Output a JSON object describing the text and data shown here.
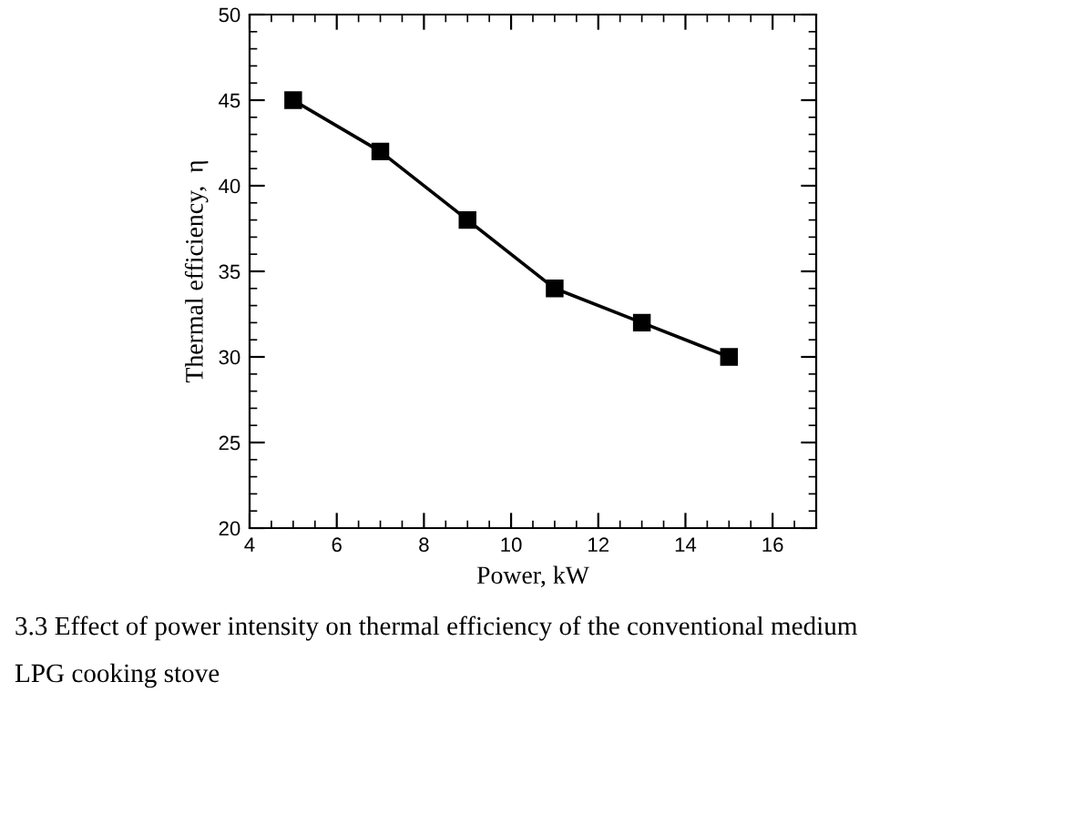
{
  "chart_data": {
    "type": "line",
    "xlabel": "Power, kW",
    "ylabel": "Thermal efficiency,  η",
    "x": [
      5,
      7,
      9,
      11,
      13,
      15
    ],
    "series": [
      {
        "color": "#000000",
        "values": [
          45,
          42,
          38,
          34,
          32,
          30
        ]
      }
    ],
    "xlim": [
      4,
      17
    ],
    "xticks": [
      4,
      6,
      8,
      10,
      12,
      14,
      16
    ],
    "ylim": [
      20,
      50
    ],
    "yticks": [
      20,
      25,
      30,
      35,
      40,
      45,
      50
    ],
    "marker": "square",
    "line_style": "solid",
    "grid": false,
    "legend": false,
    "annotations": [
      "3.3 Effect of power intensity on thermal efficiency of the conventional medium",
      "LPG cooking stove"
    ]
  }
}
